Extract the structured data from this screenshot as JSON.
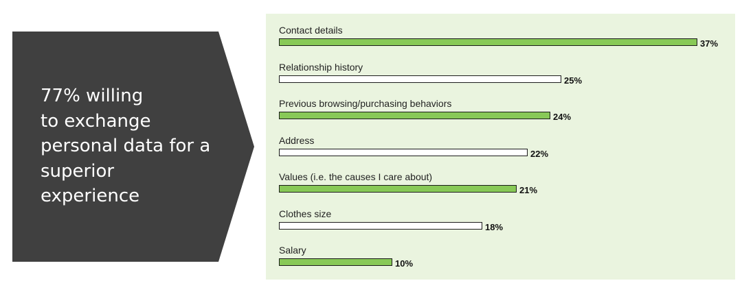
{
  "callout": {
    "lines": [
      "77% willing",
      "to exchange",
      "personal data for a",
      "superior",
      "experience"
    ]
  },
  "chart_data": {
    "type": "bar",
    "orientation": "horizontal",
    "categories": [
      "Contact details",
      "Relationship history",
      "Previous browsing/purchasing behaviors",
      "Address",
      "Values (i.e. the causes I care about)",
      "Clothes size",
      "Salary"
    ],
    "values": [
      37,
      25,
      24,
      22,
      21,
      18,
      10
    ],
    "value_labels": [
      "37%",
      "25%",
      "24%",
      "22%",
      "21%",
      "18%",
      "10%"
    ],
    "bar_styles": [
      "filled",
      "empty",
      "filled",
      "empty",
      "filled",
      "empty",
      "filled"
    ],
    "unit": "%",
    "xlim": [
      0,
      37
    ],
    "title": "",
    "xlabel": "",
    "ylabel": "",
    "grid": false,
    "colors": {
      "fill": "#88c957",
      "empty": "#ffffff",
      "border": "#1a1a1a",
      "panel": "#eaf4df"
    }
  },
  "colors": {
    "callout_bg": "#404040",
    "callout_text": "#ffffff"
  }
}
